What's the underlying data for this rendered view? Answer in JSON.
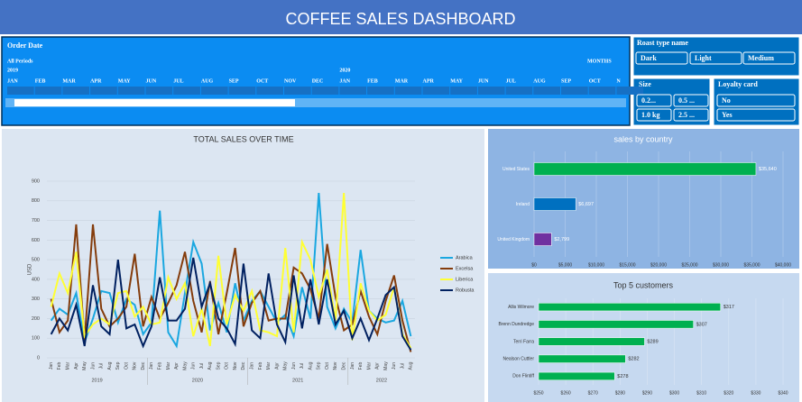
{
  "header": {
    "title": "COFFEE SALES DASHBOARD"
  },
  "timeline": {
    "title": "Order Date",
    "period": "All Periods",
    "unit": "MONTHS",
    "years": [
      "2019",
      "2020"
    ],
    "months": [
      "JAN",
      "FEB",
      "MAR",
      "APR",
      "MAY",
      "JUN",
      "JUL",
      "AUG",
      "SEP",
      "OCT",
      "NOV",
      "DEC",
      "JAN",
      "FEB",
      "MAR",
      "APR",
      "MAY",
      "JUN",
      "JUL",
      "AUG",
      "SEP",
      "OCT",
      "N"
    ]
  },
  "slicers": [
    {
      "title": "Roast type name",
      "items": [
        "Dark",
        "Light",
        "Medium"
      ]
    },
    {
      "title": "Size",
      "items": [
        "0.2...",
        "0.5 ...",
        "1.0 kg",
        "2.5 ..."
      ]
    },
    {
      "title": "Loyalty card",
      "items": [
        "No",
        "Yes"
      ]
    }
  ],
  "chart_data": [
    {
      "type": "line",
      "title": "TOTAL SALES OVER TIME",
      "y_label": "USD",
      "categories": [
        "Jan",
        "Feb",
        "Mar",
        "Apr",
        "May",
        "Jun",
        "Jul",
        "Aug",
        "Sep",
        "Oct",
        "Nov",
        "Dec",
        "Jan",
        "Feb",
        "Mar",
        "Apr",
        "May",
        "Jun",
        "Jul",
        "Aug",
        "Sep",
        "Oct",
        "Nov",
        "Dec",
        "Jan",
        "Feb",
        "Mar",
        "Apr",
        "May",
        "Jun",
        "Jul",
        "Aug",
        "Sep",
        "Oct",
        "Nov",
        "Dec",
        "Jan",
        "Feb",
        "Mar",
        "Apr",
        "May",
        "Jun",
        "Jul",
        "Aug"
      ],
      "years": [
        "2019",
        "2020",
        "2021",
        "2022"
      ],
      "ylim": [
        0,
        900
      ],
      "yticks": [
        0,
        100,
        200,
        300,
        400,
        500,
        600,
        700,
        800,
        900
      ],
      "grid": true,
      "series": [
        {
          "name": "Arabica",
          "color": "#1aa7e0",
          "values": [
            190,
            250,
            220,
            330,
            80,
            200,
            340,
            330,
            180,
            300,
            270,
            120,
            180,
            750,
            130,
            60,
            330,
            590,
            480,
            140,
            280,
            130,
            380,
            190,
            290,
            340,
            260,
            180,
            220,
            110,
            360,
            200,
            840,
            260,
            150,
            250,
            180,
            550,
            240,
            200,
            180,
            190,
            290,
            110
          ]
        },
        {
          "name": "Excelsa",
          "color": "#843c0c",
          "values": [
            300,
            130,
            190,
            680,
            90,
            680,
            250,
            160,
            200,
            260,
            530,
            160,
            310,
            200,
            280,
            370,
            540,
            290,
            130,
            390,
            120,
            330,
            560,
            160,
            280,
            340,
            190,
            200,
            200,
            460,
            430,
            350,
            200,
            580,
            310,
            140,
            170,
            340,
            210,
            120,
            290,
            420,
            190,
            30
          ]
        },
        {
          "name": "Liberica",
          "color": "#ffff33",
          "values": [
            260,
            430,
            330,
            540,
            110,
            170,
            200,
            170,
            330,
            340,
            210,
            260,
            170,
            180,
            410,
            300,
            380,
            110,
            250,
            60,
            520,
            170,
            320,
            240,
            340,
            140,
            130,
            110,
            560,
            130,
            590,
            500,
            310,
            450,
            190,
            840,
            90,
            380,
            240,
            190,
            220,
            360,
            120,
            50
          ]
        },
        {
          "name": "Robusta",
          "color": "#002060",
          "values": [
            120,
            200,
            140,
            270,
            60,
            370,
            160,
            120,
            500,
            150,
            170,
            60,
            160,
            410,
            190,
            190,
            250,
            510,
            260,
            380,
            200,
            150,
            70,
            480,
            140,
            100,
            430,
            170,
            80,
            420,
            150,
            400,
            170,
            400,
            170,
            240,
            100,
            200,
            90,
            200,
            320,
            360,
            110,
            40
          ]
        }
      ]
    },
    {
      "type": "bar",
      "orientation": "horizontal",
      "title": "sales by country",
      "categories": [
        "United States",
        "Ireland",
        "United Kingdom"
      ],
      "values": [
        35640,
        6697,
        2799
      ],
      "value_labels": [
        "$35,640",
        "$6,697",
        "$2,799"
      ],
      "colors": [
        "#00b050",
        "#0070c0",
        "#7030a0"
      ],
      "xlim": [
        0,
        40000
      ],
      "xticks": [
        {
          "value": 0,
          "label": "$0"
        },
        {
          "value": 5000,
          "label": "$5,000"
        },
        {
          "value": 10000,
          "label": "$10,000"
        },
        {
          "value": 15000,
          "label": "$15,000"
        },
        {
          "value": 20000,
          "label": "$20,000"
        },
        {
          "value": 25000,
          "label": "$25,000"
        },
        {
          "value": 30000,
          "label": "$30,000"
        },
        {
          "value": 35000,
          "label": "$35,000"
        },
        {
          "value": 40000,
          "label": "$40,000"
        }
      ]
    },
    {
      "type": "bar",
      "orientation": "horizontal",
      "title": "Top 5 customers",
      "categories": [
        "Allis Wilmore",
        "Brenn Dundredge",
        "Terri Farra",
        "Nealson Cuttler",
        "Don Flintiff"
      ],
      "values": [
        317,
        307,
        289,
        282,
        278
      ],
      "value_labels": [
        "$317",
        "$307",
        "$289",
        "$282",
        "$278"
      ],
      "color": "#00b050",
      "xlim": [
        250,
        340
      ],
      "xticks": [
        {
          "value": 250,
          "label": "$250"
        },
        {
          "value": 260,
          "label": "$260"
        },
        {
          "value": 270,
          "label": "$270"
        },
        {
          "value": 280,
          "label": "$280"
        },
        {
          "value": 290,
          "label": "$290"
        },
        {
          "value": 300,
          "label": "$300"
        },
        {
          "value": 310,
          "label": "$310"
        },
        {
          "value": 320,
          "label": "$320"
        },
        {
          "value": 330,
          "label": "$330"
        },
        {
          "value": 340,
          "label": "$340"
        }
      ]
    }
  ]
}
